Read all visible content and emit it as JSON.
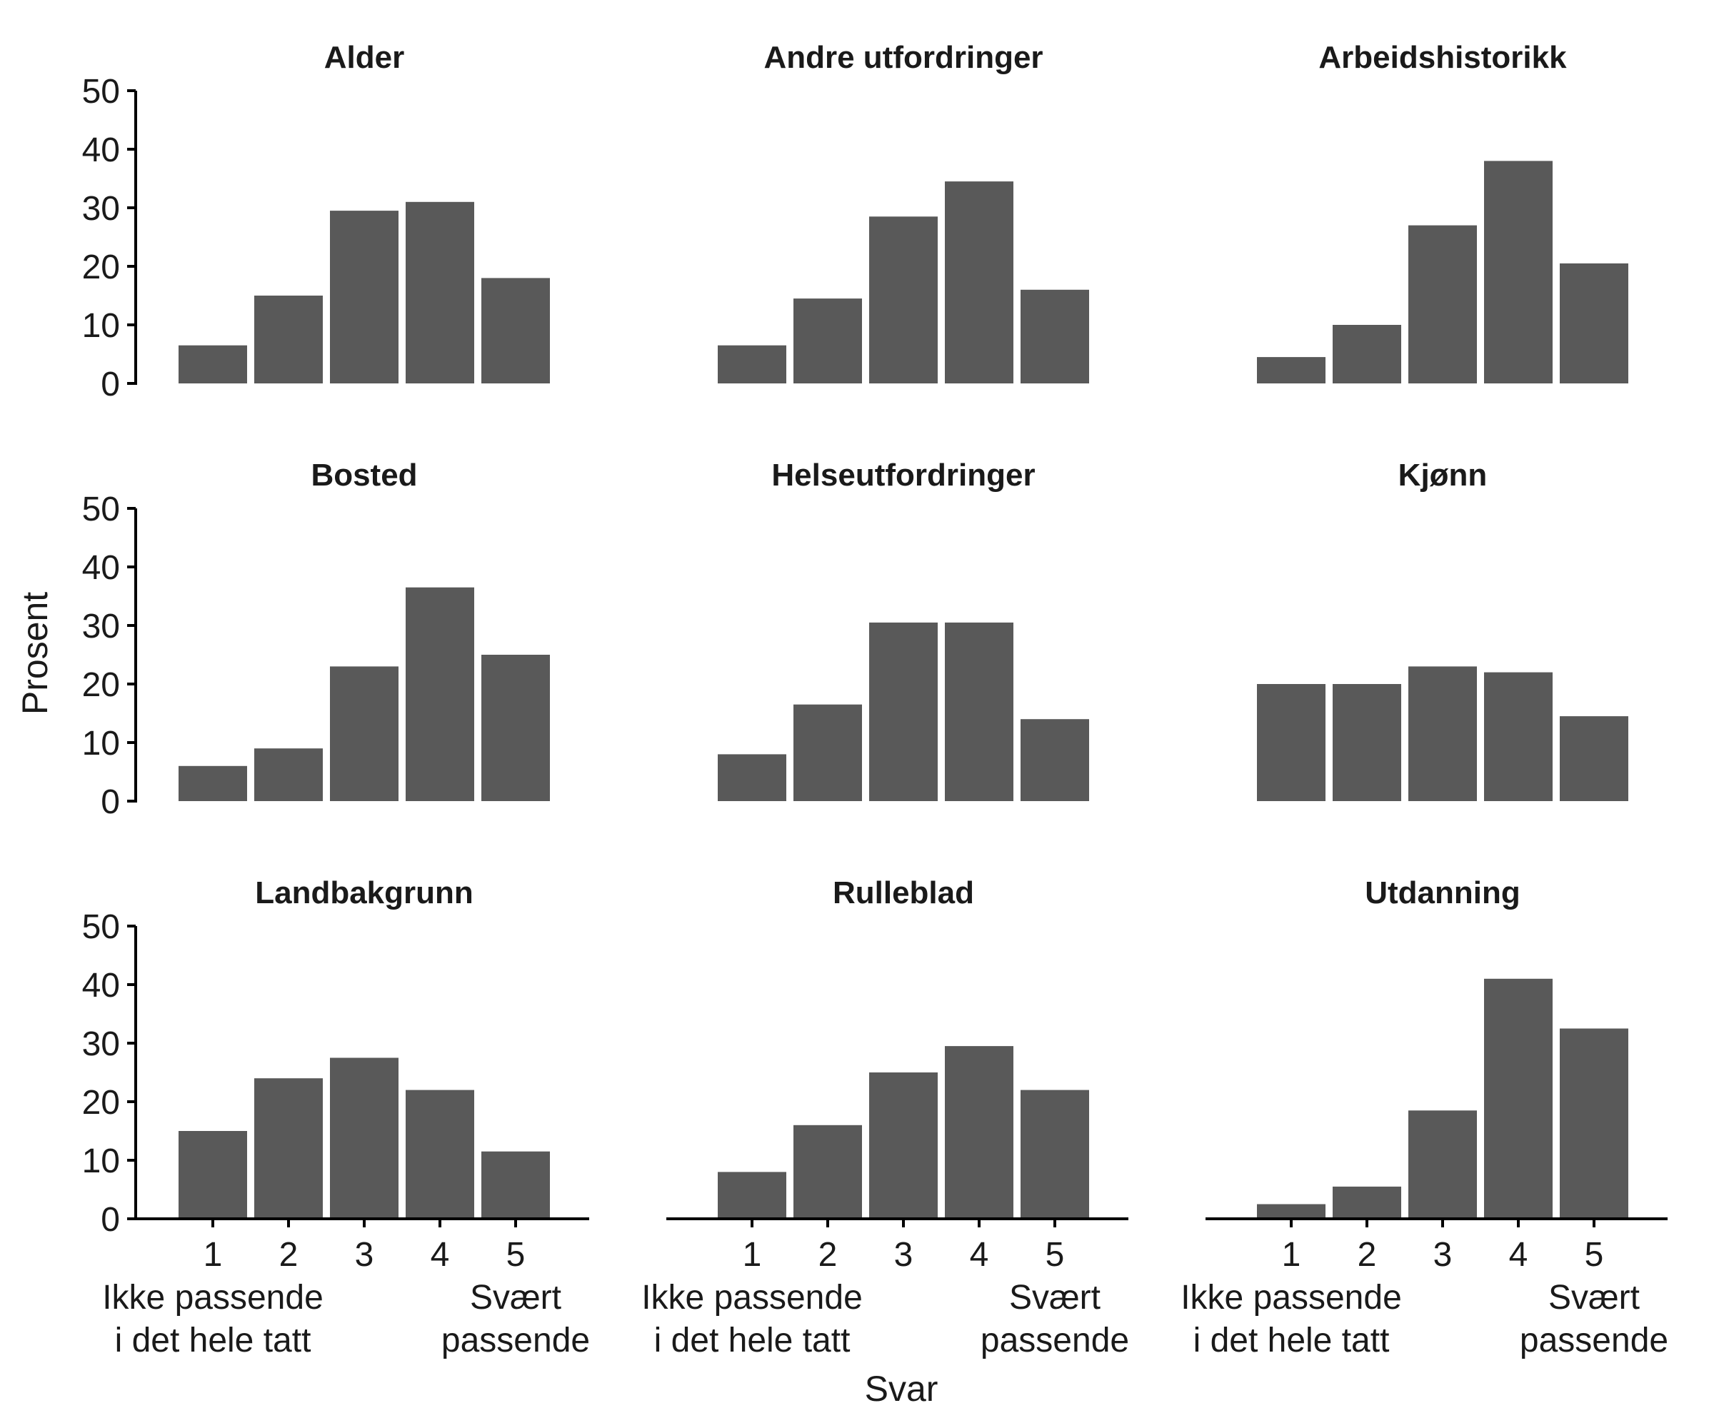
{
  "colors": {
    "bar": "#595959",
    "axis": "#000000",
    "text": "#1a1a1a",
    "background": "#ffffff"
  },
  "chart_data": {
    "type": "bar",
    "layout": "facet-grid 3x3",
    "xlabel": "Svar",
    "ylabel": "Prosent",
    "ylim": [
      0,
      50
    ],
    "yticks": [
      0,
      10,
      20,
      30,
      40,
      50
    ],
    "categories": [
      "1",
      "2",
      "3",
      "4",
      "5"
    ],
    "x_end_labels": {
      "left": [
        "Ikke passende",
        "i det hele tatt"
      ],
      "right": [
        "Svært",
        "passende"
      ]
    },
    "grid": false,
    "legend": "none",
    "panels": [
      {
        "title": "Alder",
        "values": [
          6.5,
          15,
          29.5,
          31,
          18
        ]
      },
      {
        "title": "Andre utfordringer",
        "values": [
          6.5,
          14.5,
          28.5,
          34.5,
          16
        ]
      },
      {
        "title": "Arbeidshistorikk",
        "values": [
          4.5,
          10,
          27,
          38,
          20.5
        ]
      },
      {
        "title": "Bosted",
        "values": [
          6,
          9,
          23,
          36.5,
          25
        ]
      },
      {
        "title": "Helseutfordringer",
        "values": [
          8,
          16.5,
          30.5,
          30.5,
          14
        ]
      },
      {
        "title": "Kjønn",
        "values": [
          20,
          20,
          23,
          22,
          14.5
        ]
      },
      {
        "title": "Landbakgrunn",
        "values": [
          15,
          24,
          27.5,
          22,
          11.5
        ]
      },
      {
        "title": "Rulleblad",
        "values": [
          8,
          16,
          25,
          29.5,
          22
        ]
      },
      {
        "title": "Utdanning",
        "values": [
          2.5,
          5.5,
          18.5,
          41,
          32.5
        ]
      }
    ]
  }
}
